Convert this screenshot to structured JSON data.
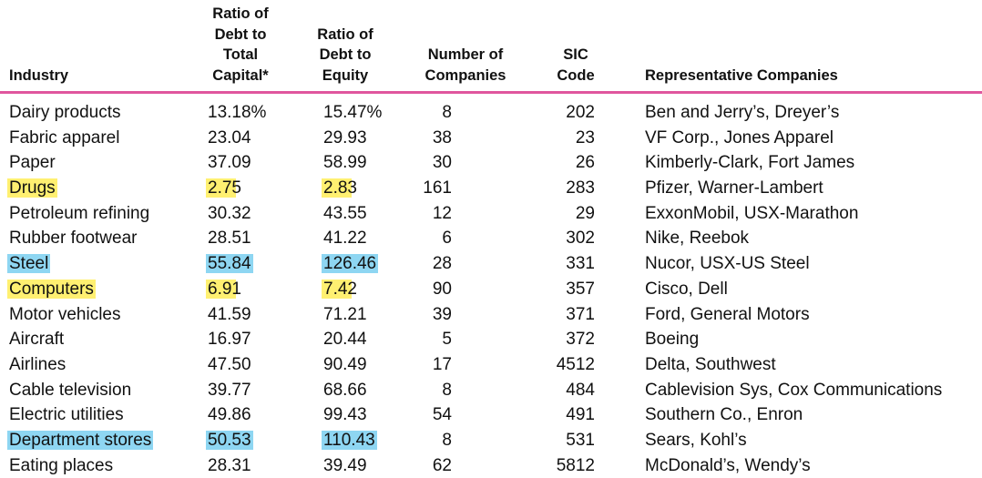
{
  "header": {
    "industry": "Industry",
    "debt_total_capital": "Ratio of\nDebt to\nTotal\nCapital*",
    "debt_equity": "Ratio of\nDebt to\nEquity",
    "num_companies": "Number of\nCompanies",
    "sic_code": "SIC\nCode",
    "representative": "Representative Companies"
  },
  "colors": {
    "rule": "#e0569e",
    "highlight_yellow": "#fff071",
    "highlight_blue": "#8ed6f2"
  },
  "rows": [
    {
      "industry": "Dairy products",
      "dtc": "13.18%",
      "dte": "15.47%",
      "num": "8",
      "sic": "202",
      "rep": "Ben and Jerry’s, Dreyer’s",
      "highlight": ""
    },
    {
      "industry": "Fabric apparel",
      "dtc": "23.04",
      "dte": "29.93",
      "num": "38",
      "sic": "23",
      "rep": "VF Corp., Jones Apparel",
      "highlight": ""
    },
    {
      "industry": "Paper",
      "dtc": "37.09",
      "dte": "58.99",
      "num": "30",
      "sic": "26",
      "rep": "Kimberly-Clark, Fort James",
      "highlight": ""
    },
    {
      "industry": "Drugs",
      "dtc": "2.75",
      "dte": "2.83",
      "num": "161",
      "sic": "283",
      "rep": "Pfizer, Warner-Lambert",
      "highlight": "yellow"
    },
    {
      "industry": "Petroleum refining",
      "dtc": "30.32",
      "dte": "43.55",
      "num": "12",
      "sic": "29",
      "rep": "ExxonMobil, USX-Marathon",
      "highlight": ""
    },
    {
      "industry": "Rubber footwear",
      "dtc": "28.51",
      "dte": "41.22",
      "num": "6",
      "sic": "302",
      "rep": "Nike, Reebok",
      "highlight": ""
    },
    {
      "industry": "Steel",
      "dtc": "55.84",
      "dte": "126.46",
      "num": "28",
      "sic": "331",
      "rep": "Nucor, USX-US Steel",
      "highlight": "blue"
    },
    {
      "industry": "Computers",
      "dtc": "6.91",
      "dte": "7.42",
      "num": "90",
      "sic": "357",
      "rep": "Cisco, Dell",
      "highlight": "yellow"
    },
    {
      "industry": "Motor vehicles",
      "dtc": "41.59",
      "dte": "71.21",
      "num": "39",
      "sic": "371",
      "rep": "Ford, General Motors",
      "highlight": ""
    },
    {
      "industry": "Aircraft",
      "dtc": "16.97",
      "dte": "20.44",
      "num": "5",
      "sic": "372",
      "rep": "Boeing",
      "highlight": ""
    },
    {
      "industry": "Airlines",
      "dtc": "47.50",
      "dte": "90.49",
      "num": "17",
      "sic": "4512",
      "rep": "Delta, Southwest",
      "highlight": ""
    },
    {
      "industry": "Cable television",
      "dtc": "39.77",
      "dte": "68.66",
      "num": "8",
      "sic": "484",
      "rep": "Cablevision Sys, Cox Communications",
      "highlight": ""
    },
    {
      "industry": "Electric utilities",
      "dtc": "49.86",
      "dte": "99.43",
      "num": "54",
      "sic": "491",
      "rep": "Southern Co., Enron",
      "highlight": ""
    },
    {
      "industry": "Department stores",
      "dtc": "50.53",
      "dte": "110.43",
      "num": "8",
      "sic": "531",
      "rep": "Sears, Kohl’s",
      "highlight": "blue"
    },
    {
      "industry": "Eating places",
      "dtc": "28.31",
      "dte": "39.49",
      "num": "62",
      "sic": "5812",
      "rep": "McDonald’s, Wendy’s",
      "highlight": ""
    }
  ]
}
